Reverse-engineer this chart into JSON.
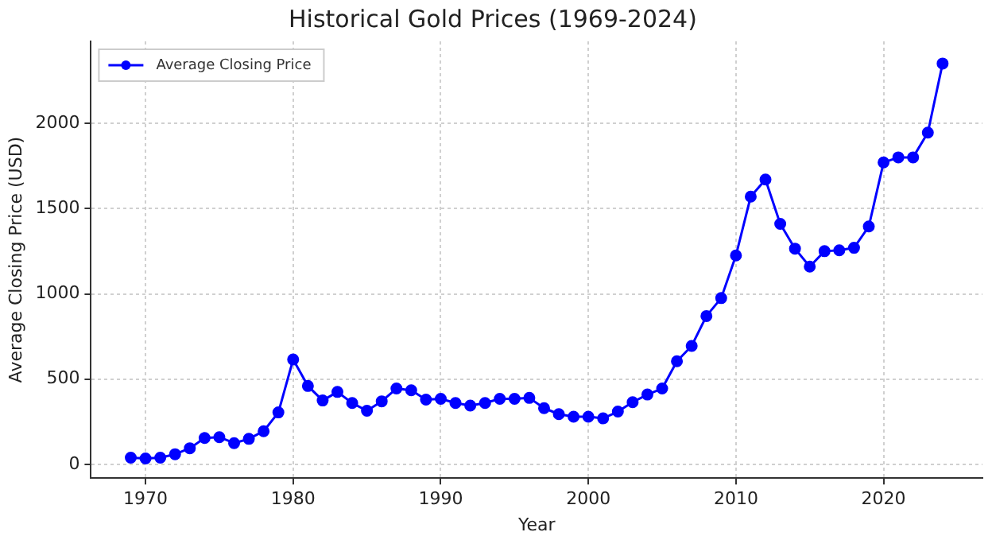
{
  "chart_data": {
    "type": "line",
    "title": "Historical Gold Prices (1969-2024)",
    "xlabel": "Year",
    "ylabel": "Average Closing Price (USD)",
    "x": [
      1969,
      1970,
      1971,
      1972,
      1973,
      1974,
      1975,
      1976,
      1977,
      1978,
      1979,
      1980,
      1981,
      1982,
      1983,
      1984,
      1985,
      1986,
      1987,
      1988,
      1989,
      1990,
      1991,
      1992,
      1993,
      1994,
      1995,
      1996,
      1997,
      1998,
      1999,
      2000,
      2001,
      2002,
      2003,
      2004,
      2005,
      2006,
      2007,
      2008,
      2009,
      2010,
      2011,
      2012,
      2013,
      2014,
      2015,
      2016,
      2017,
      2018,
      2019,
      2020,
      2021,
      2022,
      2023,
      2024
    ],
    "series": [
      {
        "name": "Average Closing Price",
        "color": "#0000ff",
        "values": [
          40,
          35,
          40,
          60,
          95,
          155,
          160,
          125,
          150,
          195,
          305,
          615,
          460,
          375,
          425,
          360,
          315,
          370,
          445,
          435,
          380,
          385,
          360,
          345,
          360,
          385,
          385,
          390,
          330,
          295,
          280,
          280,
          270,
          310,
          365,
          410,
          445,
          605,
          695,
          870,
          975,
          1225,
          1570,
          1670,
          1410,
          1265,
          1160,
          1250,
          1255,
          1270,
          1395,
          1770,
          1800,
          1800,
          1945,
          2350
        ]
      }
    ],
    "xlim": [
      1966.3,
      2026.7
    ],
    "xticks": [
      1970,
      1980,
      1990,
      2000,
      2010,
      2020
    ],
    "ylim": [
      -80,
      2480
    ],
    "yticks": [
      0,
      500,
      1000,
      1500,
      2000
    ],
    "grid": true,
    "legend": "top left",
    "marker": "circle",
    "line_style": "solid"
  }
}
